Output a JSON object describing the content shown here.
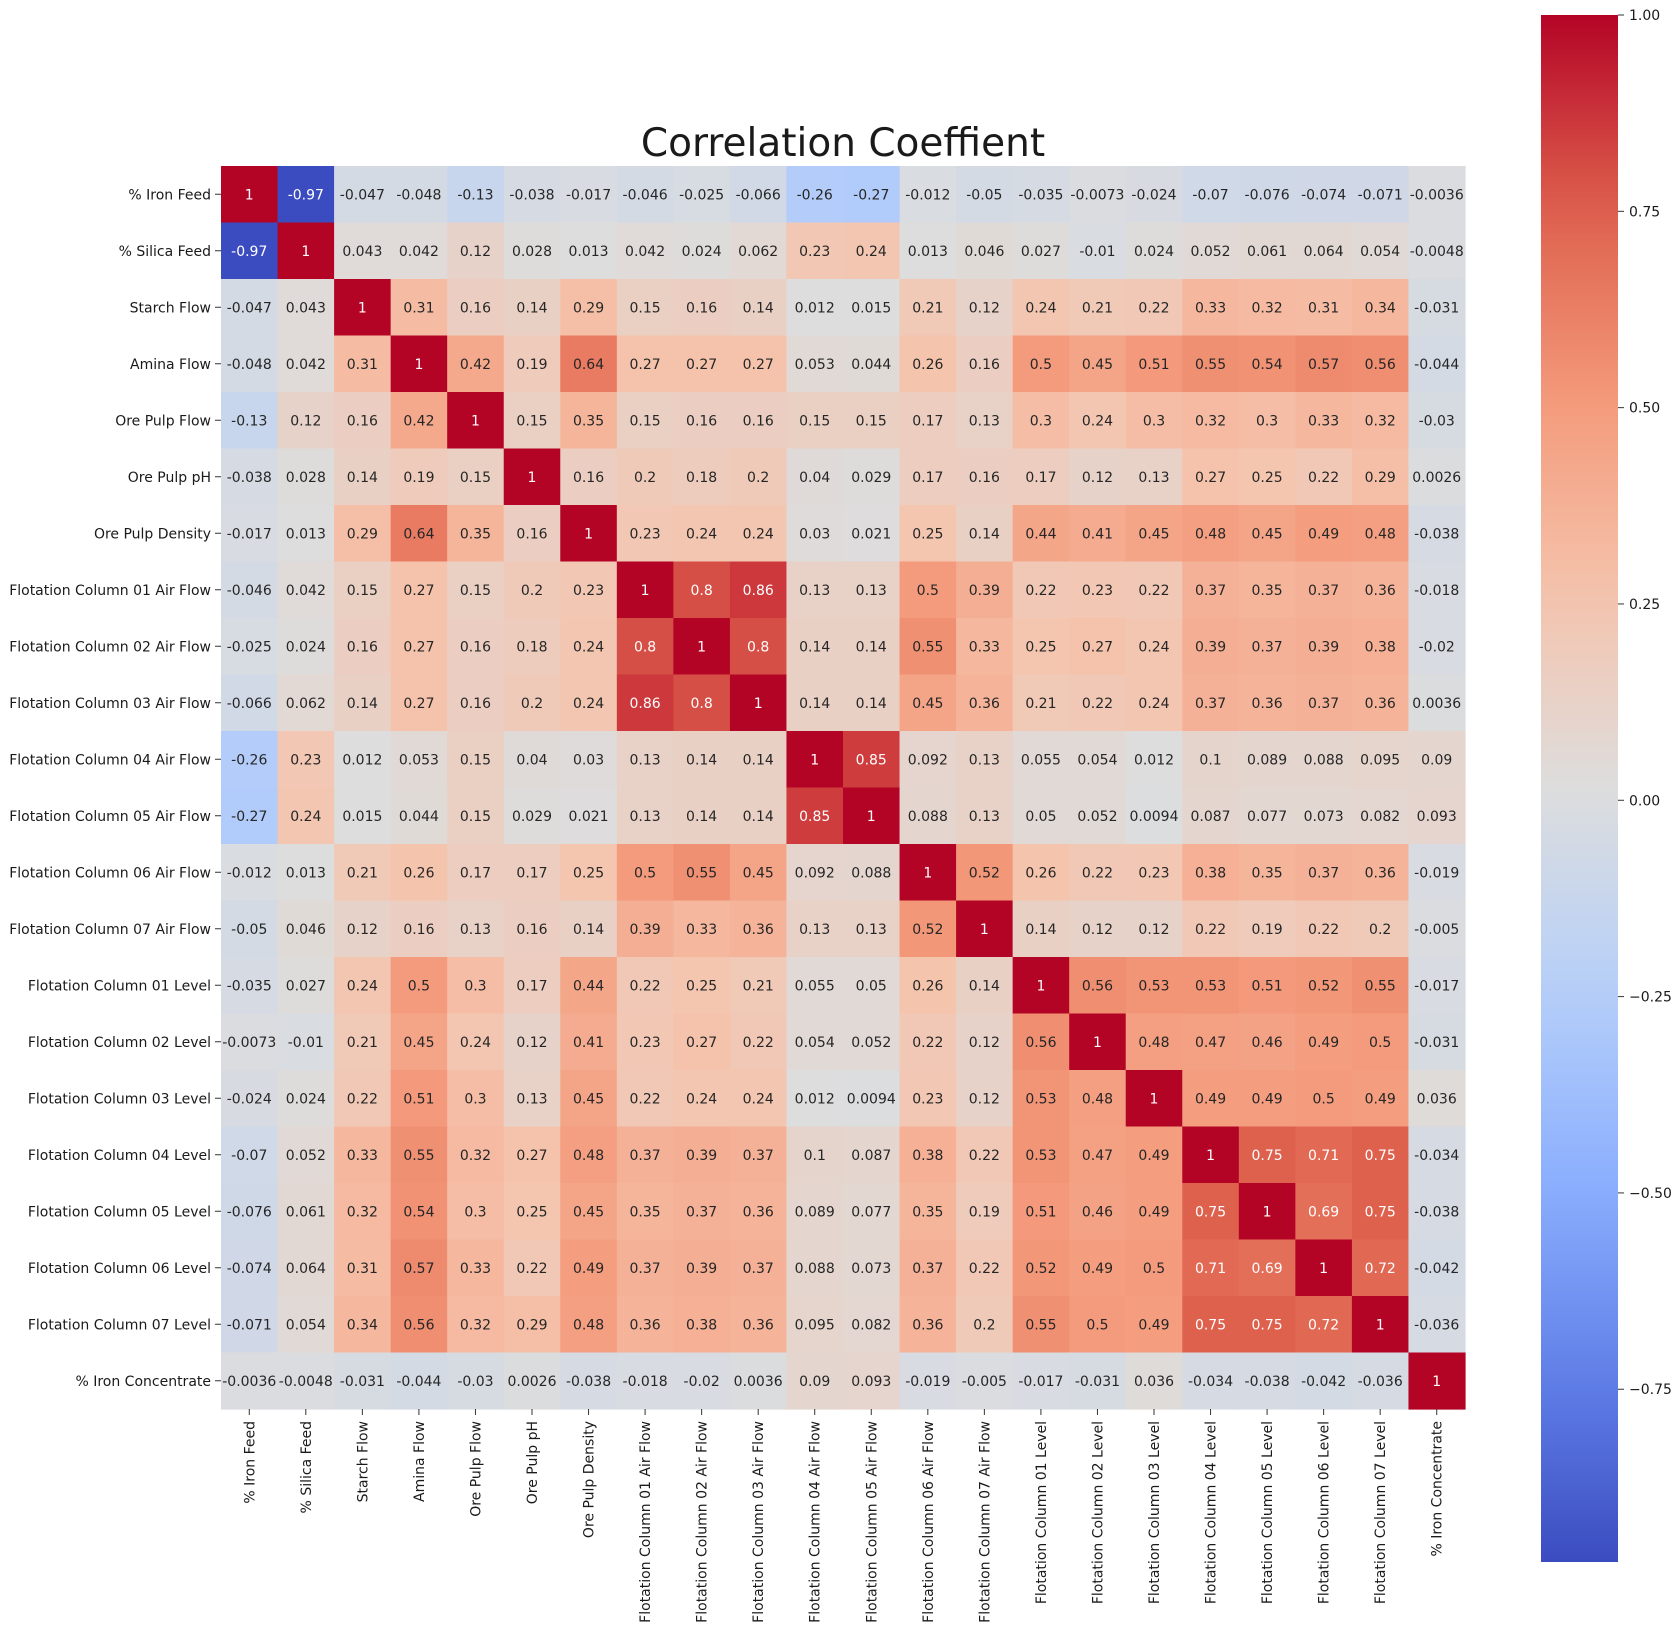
{
  "chart_data": {
    "type": "heatmap",
    "title": "Correlation Coeffient",
    "xlabel": "",
    "ylabel": "",
    "labels": [
      "% Iron Feed",
      "% Silica Feed",
      "Starch Flow",
      "Amina Flow",
      "Ore Pulp Flow",
      "Ore Pulp pH",
      "Ore Pulp Density",
      "Flotation Column 01 Air Flow",
      "Flotation Column 02 Air Flow",
      "Flotation Column 03 Air Flow",
      "Flotation Column 04 Air Flow",
      "Flotation Column 05 Air Flow",
      "Flotation Column 06 Air Flow",
      "Flotation Column 07 Air Flow",
      "Flotation Column 01 Level",
      "Flotation Column 02 Level",
      "Flotation Column 03 Level",
      "Flotation Column 04 Level",
      "Flotation Column 05 Level",
      "Flotation Column 06 Level",
      "Flotation Column 07 Level",
      "% Iron Concentrate"
    ],
    "matrix": [
      [
        1,
        -0.97,
        -0.047,
        -0.048,
        -0.13,
        -0.038,
        -0.017,
        -0.046,
        -0.025,
        -0.066,
        -0.26,
        -0.27,
        -0.012,
        -0.05,
        -0.035,
        -0.0073,
        -0.024,
        -0.07,
        -0.076,
        -0.074,
        -0.071,
        -0.0036
      ],
      [
        -0.97,
        1,
        0.043,
        0.042,
        0.12,
        0.028,
        0.013,
        0.042,
        0.024,
        0.062,
        0.23,
        0.24,
        0.013,
        0.046,
        0.027,
        -0.01,
        0.024,
        0.052,
        0.061,
        0.064,
        0.054,
        -0.0048
      ],
      [
        -0.047,
        0.043,
        1,
        0.31,
        0.16,
        0.14,
        0.29,
        0.15,
        0.16,
        0.14,
        0.012,
        0.015,
        0.21,
        0.12,
        0.24,
        0.21,
        0.22,
        0.33,
        0.32,
        0.31,
        0.34,
        -0.031
      ],
      [
        -0.048,
        0.042,
        0.31,
        1,
        0.42,
        0.19,
        0.64,
        0.27,
        0.27,
        0.27,
        0.053,
        0.044,
        0.26,
        0.16,
        0.5,
        0.45,
        0.51,
        0.55,
        0.54,
        0.57,
        0.56,
        -0.044
      ],
      [
        -0.13,
        0.12,
        0.16,
        0.42,
        1,
        0.15,
        0.35,
        0.15,
        0.16,
        0.16,
        0.15,
        0.15,
        0.17,
        0.13,
        0.3,
        0.24,
        0.3,
        0.32,
        0.3,
        0.33,
        0.32,
        -0.03
      ],
      [
        -0.038,
        0.028,
        0.14,
        0.19,
        0.15,
        1,
        0.16,
        0.2,
        0.18,
        0.2,
        0.04,
        0.029,
        0.17,
        0.16,
        0.17,
        0.12,
        0.13,
        0.27,
        0.25,
        0.22,
        0.29,
        0.0026
      ],
      [
        -0.017,
        0.013,
        0.29,
        0.64,
        0.35,
        0.16,
        1,
        0.23,
        0.24,
        0.24,
        0.03,
        0.021,
        0.25,
        0.14,
        0.44,
        0.41,
        0.45,
        0.48,
        0.45,
        0.49,
        0.48,
        -0.038
      ],
      [
        -0.046,
        0.042,
        0.15,
        0.27,
        0.15,
        0.2,
        0.23,
        1,
        0.8,
        0.86,
        0.13,
        0.13,
        0.5,
        0.39,
        0.22,
        0.23,
        0.22,
        0.37,
        0.35,
        0.37,
        0.36,
        -0.018
      ],
      [
        -0.025,
        0.024,
        0.16,
        0.27,
        0.16,
        0.18,
        0.24,
        0.8,
        1,
        0.8,
        0.14,
        0.14,
        0.55,
        0.33,
        0.25,
        0.27,
        0.24,
        0.39,
        0.37,
        0.39,
        0.38,
        -0.02
      ],
      [
        -0.066,
        0.062,
        0.14,
        0.27,
        0.16,
        0.2,
        0.24,
        0.86,
        0.8,
        1,
        0.14,
        0.14,
        0.45,
        0.36,
        0.21,
        0.22,
        0.24,
        0.37,
        0.36,
        0.37,
        0.36,
        0.0036
      ],
      [
        -0.26,
        0.23,
        0.012,
        0.053,
        0.15,
        0.04,
        0.03,
        0.13,
        0.14,
        0.14,
        1,
        0.85,
        0.092,
        0.13,
        0.055,
        0.054,
        0.012,
        0.1,
        0.089,
        0.088,
        0.095,
        0.09
      ],
      [
        -0.27,
        0.24,
        0.015,
        0.044,
        0.15,
        0.029,
        0.021,
        0.13,
        0.14,
        0.14,
        0.85,
        1,
        0.088,
        0.13,
        0.05,
        0.052,
        0.0094,
        0.087,
        0.077,
        0.073,
        0.082,
        0.093
      ],
      [
        -0.012,
        0.013,
        0.21,
        0.26,
        0.17,
        0.17,
        0.25,
        0.5,
        0.55,
        0.45,
        0.092,
        0.088,
        1,
        0.52,
        0.26,
        0.22,
        0.23,
        0.38,
        0.35,
        0.37,
        0.36,
        -0.019
      ],
      [
        -0.05,
        0.046,
        0.12,
        0.16,
        0.13,
        0.16,
        0.14,
        0.39,
        0.33,
        0.36,
        0.13,
        0.13,
        0.52,
        1,
        0.14,
        0.12,
        0.12,
        0.22,
        0.19,
        0.22,
        0.2,
        -0.005
      ],
      [
        -0.035,
        0.027,
        0.24,
        0.5,
        0.3,
        0.17,
        0.44,
        0.22,
        0.25,
        0.21,
        0.055,
        0.05,
        0.26,
        0.14,
        1,
        0.56,
        0.53,
        0.53,
        0.51,
        0.52,
        0.55,
        -0.017
      ],
      [
        -0.0073,
        -0.01,
        0.21,
        0.45,
        0.24,
        0.12,
        0.41,
        0.23,
        0.27,
        0.22,
        0.054,
        0.052,
        0.22,
        0.12,
        0.56,
        1,
        0.48,
        0.47,
        0.46,
        0.49,
        0.5,
        -0.031
      ],
      [
        -0.024,
        0.024,
        0.22,
        0.51,
        0.3,
        0.13,
        0.45,
        0.22,
        0.24,
        0.24,
        0.012,
        0.0094,
        0.23,
        0.12,
        0.53,
        0.48,
        1,
        0.49,
        0.49,
        0.5,
        0.49,
        0.036
      ],
      [
        -0.07,
        0.052,
        0.33,
        0.55,
        0.32,
        0.27,
        0.48,
        0.37,
        0.39,
        0.37,
        0.1,
        0.087,
        0.38,
        0.22,
        0.53,
        0.47,
        0.49,
        1,
        0.75,
        0.71,
        0.75,
        -0.034
      ],
      [
        -0.076,
        0.061,
        0.32,
        0.54,
        0.3,
        0.25,
        0.45,
        0.35,
        0.37,
        0.36,
        0.089,
        0.077,
        0.35,
        0.19,
        0.51,
        0.46,
        0.49,
        0.75,
        1,
        0.69,
        0.75,
        -0.038
      ],
      [
        -0.074,
        0.064,
        0.31,
        0.57,
        0.33,
        0.22,
        0.49,
        0.37,
        0.39,
        0.37,
        0.088,
        0.073,
        0.37,
        0.22,
        0.52,
        0.49,
        0.5,
        0.71,
        0.69,
        1,
        0.72,
        -0.042
      ],
      [
        -0.071,
        0.054,
        0.34,
        0.56,
        0.32,
        0.29,
        0.48,
        0.36,
        0.38,
        0.36,
        0.095,
        0.082,
        0.36,
        0.2,
        0.55,
        0.5,
        0.49,
        0.75,
        0.75,
        0.72,
        1,
        -0.036
      ],
      [
        -0.0036,
        -0.0048,
        -0.031,
        -0.044,
        -0.03,
        0.0026,
        -0.038,
        -0.018,
        -0.02,
        0.0036,
        0.09,
        0.093,
        -0.019,
        -0.005,
        -0.017,
        -0.031,
        0.036,
        -0.034,
        -0.038,
        -0.042,
        -0.036,
        1
      ]
    ],
    "colormap": "coolwarm",
    "colorbar": {
      "range": [
        -0.97,
        1
      ],
      "ticks": [
        -0.75,
        -0.5,
        -0.25,
        0,
        0.25,
        0.5,
        0.75,
        1
      ],
      "tick_labels": [
        "−0.75",
        "−0.50",
        "−0.25",
        "0.00",
        "0.25",
        "0.50",
        "0.75",
        "1.00"
      ]
    },
    "annotated": true
  }
}
